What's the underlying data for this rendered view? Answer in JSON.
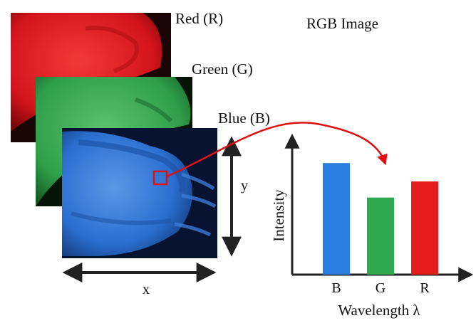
{
  "title": "RGB Image",
  "layers": [
    {
      "label": "Red (R)",
      "color": "#d81c22"
    },
    {
      "label": "Green (G)",
      "color": "#2f9e4a"
    },
    {
      "label": "Blue (B)",
      "color": "#2a6fd0"
    }
  ],
  "axes": {
    "x_label": "x",
    "y_label": "y"
  },
  "chart_data": {
    "type": "bar",
    "categories": [
      "B",
      "G",
      "R"
    ],
    "values": [
      0.97,
      0.67,
      0.81
    ],
    "colors": [
      "#2a7fe0",
      "#2fa84f",
      "#e41b1b"
    ],
    "xlabel": "Wavelength λ",
    "ylabel": "Intensity",
    "ylim": [
      0,
      1.2
    ]
  }
}
